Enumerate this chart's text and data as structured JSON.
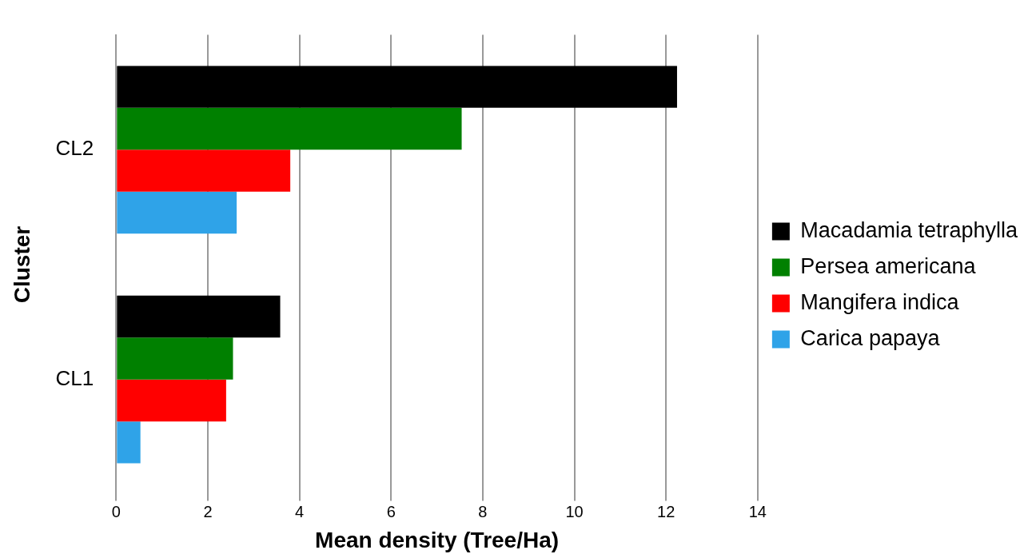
{
  "chart_data": {
    "type": "bar",
    "orientation": "horizontal",
    "categories": [
      "CL2",
      "CL1"
    ],
    "series": [
      {
        "name": "Macadamia tetraphylla",
        "color": "#000000",
        "values": [
          12.24,
          3.58
        ]
      },
      {
        "name": "Persea americana",
        "color": "#008000",
        "values": [
          7.54,
          2.55
        ]
      },
      {
        "name": "Mangifera indica",
        "color": "#ff0000",
        "values": [
          3.8,
          2.4
        ]
      },
      {
        "name": "Carica papaya",
        "color": "#2fa3e8",
        "values": [
          2.63,
          0.53
        ]
      }
    ],
    "xlabel": "Mean density (Tree/Ha)",
    "ylabel": "Cluster",
    "xlim": [
      0,
      14
    ],
    "xticks": [
      0,
      2,
      4,
      6,
      8,
      10,
      12,
      14
    ],
    "grid": "x",
    "legend": "right"
  }
}
